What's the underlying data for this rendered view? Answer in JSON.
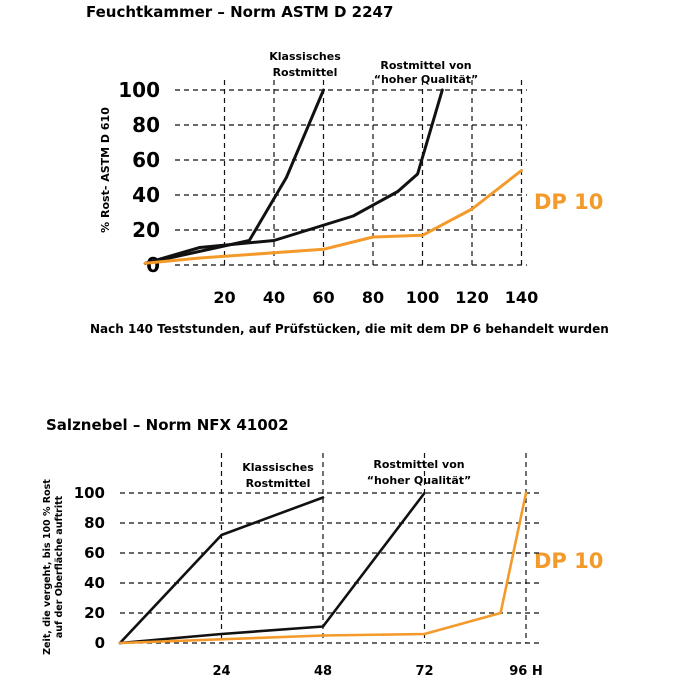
{
  "colors": {
    "orange": "#f39a2b",
    "black": "#111111"
  },
  "chart_data": [
    {
      "type": "line",
      "title": "Feuchtkammer – Norm ASTM D 2247",
      "ylabel": "% Rost- ASTM D 610",
      "note": "Nach 140 Teststunden, auf Prüfstücken, die mit dem DP 6 behandelt wurden",
      "yticks": [
        "0",
        "20",
        "40",
        "60",
        "80",
        "100"
      ],
      "xticks": [
        "20",
        "40",
        "60",
        "80",
        "100",
        "120",
        "140"
      ],
      "xlim": [
        -12,
        146
      ],
      "ylim": [
        0,
        100
      ],
      "annotations": [
        {
          "lines": [
            "Klassisches",
            "Rostmittel"
          ]
        },
        {
          "lines": [
            "Rostmittel von",
            "“hoher Qualität”"
          ]
        }
      ],
      "series": [
        {
          "name": "",
          "color": "#111111",
          "points": [
            [
              -12,
              1
            ],
            [
              30,
              14
            ],
            [
              45,
              50
            ],
            [
              60,
              100
            ]
          ]
        },
        {
          "name": "",
          "color": "#111111",
          "points": [
            [
              -12,
              1
            ],
            [
              10,
              10
            ],
            [
              40,
              14
            ],
            [
              72,
              28
            ],
            [
              90,
              42
            ],
            [
              98,
              52
            ],
            [
              108,
              100
            ]
          ]
        },
        {
          "name": "DP 10",
          "color": "#f39a2b",
          "points": [
            [
              -12,
              1
            ],
            [
              10,
              4
            ],
            [
              60,
              9
            ],
            [
              80,
              16
            ],
            [
              100,
              17
            ],
            [
              120,
              32
            ],
            [
              140,
              54
            ]
          ]
        }
      ]
    },
    {
      "type": "line",
      "title": "Salznebel – Norm NFX 41002",
      "ylabel": [
        "Zeit, die vergeht, bis 100 % Rost",
        "auf der Oberfläche auftritt"
      ],
      "yticks": [
        "0",
        "20",
        "40",
        "60",
        "80",
        "100"
      ],
      "xticks": [
        "24",
        "48",
        "72",
        "96 H"
      ],
      "xlim": [
        0,
        96
      ],
      "ylim": [
        0,
        100
      ],
      "annotations": [
        {
          "lines": [
            "Klassisches",
            "Rostmittel"
          ]
        },
        {
          "lines": [
            "Rostmittel von",
            "“hoher Qualität”"
          ]
        }
      ],
      "series": [
        {
          "name": "",
          "color": "#111111",
          "points": [
            [
              0,
              0
            ],
            [
              24,
              72
            ],
            [
              48,
              97
            ]
          ]
        },
        {
          "name": "",
          "color": "#111111",
          "points": [
            [
              0,
              0
            ],
            [
              24,
              6
            ],
            [
              48,
              11
            ],
            [
              72,
              100
            ]
          ]
        },
        {
          "name": "DP 10",
          "color": "#f39a2b",
          "points": [
            [
              0,
              0
            ],
            [
              48,
              5
            ],
            [
              72,
              6
            ],
            [
              90,
              20
            ],
            [
              96,
              100
            ]
          ]
        }
      ]
    }
  ]
}
